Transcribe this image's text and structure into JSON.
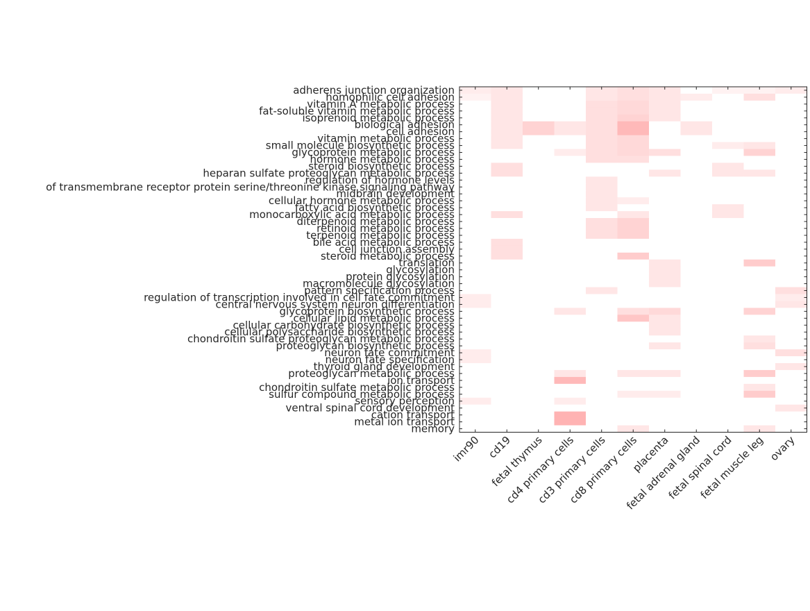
{
  "chart_data": {
    "type": "heatmap",
    "title": "",
    "xlabel": "",
    "ylabel": "",
    "colors": {
      "low": "#ffffff",
      "high": "#ff8080",
      "axis": "#262626"
    },
    "columns": [
      "imr90",
      "cd19",
      "fetal thymus",
      "cd4 primary cells",
      "cd3 primary cells",
      "cd8 primary cells",
      "placenta",
      "fetal adrenal gland",
      "fetal spinal cord",
      "fetal muscle leg",
      "ovary"
    ],
    "rows": [
      "adherens junction organization",
      "homophilic cell adhesion",
      "vitamin A metabolic process",
      "fat-soluble vitamin metabolic process",
      "isoprenoid metabolic process",
      "biological adhesion",
      "cell adhesion",
      "vitamin metabolic process",
      "small molecule biosynthetic process",
      "glycoprotein metabolic process",
      "hormone metabolic process",
      "steroid biosynthetic process",
      "heparan sulfate proteoglycan metabolic process",
      "regulation of hormone levels",
      "of transmembrane receptor protein serine/threonine kinase signaling pathway",
      "midbrain development",
      "cellular hormone metabolic process",
      "fatty acid biosynthetic process",
      "monocarboxylic acid metabolic process",
      "diterpenoid metabolic process",
      "retinoid metabolic process",
      "terpenoid metabolic process",
      "bile acid metabolic process",
      "cell junction assembly",
      "steroid metabolic process",
      "translation",
      "glycosylation",
      "protein glycosylation",
      "macromolecule glycosylation",
      "pattern specification process",
      "regulation of transcription involved in cell fate commitment",
      "central nervous system neuron differentiation",
      "glycoprotein biosynthetic process",
      "cellular lipid metabolic process",
      "cellular carbohydrate biosynthetic process",
      "cellular polysaccharide biosynthetic process",
      "chondroitin sulfate proteoglycan metabolic process",
      "proteoglycan biosynthetic process",
      "neuron fate commitment",
      "neuron fate specification",
      "thyroid gland development",
      "proteoglycan metabolic process",
      "ion transport",
      "chondroitin sulfate metabolic process",
      "sulfur compound metabolic process",
      "sensory perception",
      "ventral spinal cord development",
      "cation transport",
      "metal ion transport",
      "memory"
    ],
    "values": [
      [
        0.15,
        0.2,
        0,
        0,
        0.2,
        0.25,
        0.2,
        0,
        0.1,
        0.1,
        0.15
      ],
      [
        0.1,
        0.2,
        0,
        0,
        0.2,
        0.25,
        0.2,
        0.15,
        0,
        0.25,
        0
      ],
      [
        0,
        0.2,
        0,
        0,
        0.25,
        0.3,
        0.2,
        0,
        0,
        0,
        0
      ],
      [
        0,
        0.2,
        0,
        0,
        0.25,
        0.3,
        0.2,
        0,
        0,
        0,
        0
      ],
      [
        0,
        0.2,
        0,
        0,
        0.25,
        0.35,
        0.2,
        0,
        0,
        0,
        0
      ],
      [
        0,
        0.2,
        0.35,
        0.2,
        0.25,
        0.55,
        0,
        0.2,
        0,
        0,
        0
      ],
      [
        0,
        0.2,
        0.35,
        0.2,
        0.25,
        0.55,
        0,
        0.2,
        0,
        0,
        0
      ],
      [
        0,
        0.2,
        0,
        0,
        0.25,
        0.3,
        0,
        0,
        0,
        0,
        0
      ],
      [
        0,
        0.2,
        0,
        0,
        0.25,
        0.3,
        0,
        0,
        0.15,
        0.2,
        0
      ],
      [
        0,
        0,
        0,
        0.15,
        0.25,
        0.3,
        0.25,
        0,
        0,
        0.35,
        0
      ],
      [
        0,
        0,
        0,
        0,
        0.25,
        0.25,
        0,
        0,
        0,
        0,
        0
      ],
      [
        0,
        0.25,
        0,
        0,
        0,
        0,
        0,
        0,
        0.2,
        0,
        0
      ],
      [
        0,
        0.25,
        0,
        0,
        0,
        0,
        0.2,
        0,
        0.2,
        0.2,
        0
      ],
      [
        0,
        0,
        0,
        0,
        0.2,
        0,
        0,
        0,
        0,
        0,
        0
      ],
      [
        0,
        0,
        0,
        0,
        0.2,
        0,
        0,
        0,
        0,
        0,
        0
      ],
      [
        0,
        0,
        0,
        0,
        0.2,
        0,
        0,
        0,
        0,
        0,
        0
      ],
      [
        0,
        0,
        0,
        0,
        0.2,
        0.15,
        0,
        0,
        0,
        0,
        0
      ],
      [
        0,
        0,
        0,
        0,
        0.2,
        0,
        0,
        0,
        0.2,
        0,
        0
      ],
      [
        0,
        0.25,
        0,
        0,
        0,
        0.2,
        0,
        0,
        0.2,
        0,
        0
      ],
      [
        0,
        0,
        0,
        0,
        0.25,
        0.35,
        0,
        0,
        0,
        0,
        0
      ],
      [
        0,
        0,
        0,
        0,
        0.25,
        0.35,
        0,
        0,
        0,
        0,
        0
      ],
      [
        0,
        0,
        0,
        0,
        0.25,
        0.35,
        0,
        0,
        0,
        0,
        0
      ],
      [
        0,
        0.25,
        0,
        0,
        0,
        0,
        0,
        0,
        0,
        0,
        0
      ],
      [
        0,
        0.25,
        0,
        0,
        0,
        0,
        0,
        0,
        0,
        0,
        0
      ],
      [
        0,
        0.25,
        0,
        0,
        0,
        0.4,
        0,
        0,
        0,
        0,
        0
      ],
      [
        0,
        0,
        0,
        0,
        0,
        0,
        0.2,
        0,
        0,
        0.4,
        0
      ],
      [
        0,
        0,
        0,
        0,
        0,
        0,
        0.2,
        0,
        0,
        0,
        0
      ],
      [
        0,
        0,
        0,
        0,
        0,
        0,
        0.2,
        0,
        0,
        0,
        0
      ],
      [
        0,
        0,
        0,
        0,
        0,
        0,
        0.2,
        0,
        0,
        0,
        0
      ],
      [
        0,
        0,
        0,
        0,
        0.2,
        0,
        0,
        0,
        0,
        0,
        0.25
      ],
      [
        0.15,
        0,
        0,
        0,
        0,
        0,
        0,
        0,
        0,
        0,
        0.15
      ],
      [
        0.15,
        0,
        0,
        0,
        0,
        0,
        0,
        0,
        0,
        0,
        0.2
      ],
      [
        0,
        0,
        0,
        0.2,
        0,
        0.25,
        0.3,
        0,
        0,
        0.35,
        0
      ],
      [
        0,
        0,
        0,
        0,
        0,
        0.45,
        0.2,
        0,
        0,
        0,
        0
      ],
      [
        0,
        0,
        0,
        0,
        0,
        0,
        0.2,
        0,
        0,
        0,
        0
      ],
      [
        0,
        0,
        0,
        0,
        0,
        0,
        0.2,
        0,
        0,
        0,
        0
      ],
      [
        0,
        0,
        0,
        0,
        0,
        0,
        0,
        0,
        0,
        0.2,
        0
      ],
      [
        0,
        0,
        0,
        0,
        0,
        0,
        0.2,
        0,
        0,
        0.25,
        0
      ],
      [
        0.15,
        0,
        0,
        0,
        0,
        0,
        0,
        0,
        0,
        0,
        0.25
      ],
      [
        0.15,
        0,
        0,
        0,
        0,
        0,
        0,
        0,
        0,
        0,
        0
      ],
      [
        0,
        0,
        0,
        0,
        0,
        0,
        0,
        0,
        0,
        0,
        0.2
      ],
      [
        0,
        0,
        0,
        0.2,
        0,
        0.2,
        0.2,
        0,
        0,
        0.4,
        0
      ],
      [
        0,
        0,
        0,
        0.55,
        0,
        0,
        0,
        0,
        0,
        0,
        0
      ],
      [
        0,
        0,
        0,
        0,
        0,
        0,
        0,
        0,
        0,
        0.2,
        0
      ],
      [
        0,
        0,
        0,
        0,
        0,
        0.15,
        0.15,
        0,
        0,
        0.4,
        0
      ],
      [
        0.15,
        0,
        0,
        0.15,
        0,
        0,
        0,
        0,
        0,
        0,
        0
      ],
      [
        0,
        0,
        0,
        0,
        0,
        0,
        0,
        0,
        0,
        0,
        0.2
      ],
      [
        0,
        0,
        0,
        0.6,
        0,
        0,
        0,
        0,
        0,
        0,
        0
      ],
      [
        0,
        0,
        0,
        0.6,
        0,
        0,
        0,
        0,
        0,
        0,
        0
      ],
      [
        0,
        0,
        0,
        0,
        0,
        0.2,
        0,
        0,
        0,
        0.2,
        0
      ]
    ]
  }
}
